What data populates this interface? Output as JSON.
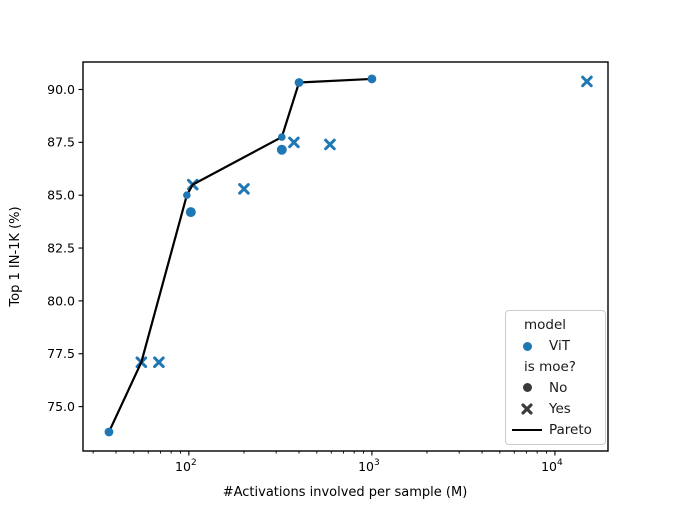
{
  "chart_data": {
    "type": "scatter",
    "xlabel": "#Activations involved per sample (M)",
    "ylabel": "Top 1 IN-1K (%)",
    "x_scale": "log",
    "xlim": [
      26.4,
      19500
    ],
    "ylim": [
      72.9,
      91.3
    ],
    "y_ticks": [
      75.0,
      77.5,
      80.0,
      82.5,
      85.0,
      87.5,
      90.0
    ],
    "x_major_ticks": [
      100,
      1000,
      10000
    ],
    "x_minor_ticks": [
      30,
      40,
      50,
      60,
      70,
      80,
      90,
      200,
      300,
      400,
      500,
      600,
      700,
      800,
      900,
      2000,
      3000,
      4000,
      5000,
      6000,
      7000,
      8000,
      9000
    ],
    "grid": false,
    "legend_position": "lower right",
    "colors": {
      "series_blue": "#1f77b4",
      "pareto_black": "#000000",
      "legend_marker_dark": "#3a3a3a"
    },
    "series": [
      {
        "name": "ViT (is moe? = No)",
        "marker": "circle",
        "color": "#1f77b4",
        "points": [
          {
            "x": 36.6,
            "y": 73.8,
            "r": 4.4
          },
          {
            "x": 97.5,
            "y": 85.0,
            "r": 3.8
          },
          {
            "x": 102.5,
            "y": 84.2,
            "r": 5.0
          },
          {
            "x": 322,
            "y": 87.75,
            "r": 3.8
          },
          {
            "x": 322,
            "y": 87.15,
            "r": 5.0
          },
          {
            "x": 400,
            "y": 90.33,
            "r": 4.4
          },
          {
            "x": 1000,
            "y": 90.5,
            "r": 4.4
          }
        ]
      },
      {
        "name": "ViT (is moe? = Yes)",
        "marker": "x",
        "color": "#1f77b4",
        "points": [
          {
            "x": 55,
            "y": 77.1
          },
          {
            "x": 68.6,
            "y": 77.1
          },
          {
            "x": 105,
            "y": 85.5
          },
          {
            "x": 200,
            "y": 85.3
          },
          {
            "x": 375,
            "y": 87.5
          },
          {
            "x": 590,
            "y": 87.4
          },
          {
            "x": 14960,
            "y": 90.38
          }
        ]
      }
    ],
    "pareto_line": {
      "name": "Pareto",
      "color": "#000000",
      "points": [
        [
          36.6,
          73.8
        ],
        [
          55,
          77.1
        ],
        [
          97.5,
          85.0
        ],
        [
          105,
          85.5
        ],
        [
          322,
          87.75
        ],
        [
          400,
          90.33
        ],
        [
          1000,
          90.5
        ]
      ]
    },
    "legend": {
      "title_model": "model",
      "label_vit": "ViT",
      "title_ismoe": "is moe?",
      "label_no": "No",
      "label_yes": "Yes",
      "label_pareto": "Pareto"
    }
  }
}
